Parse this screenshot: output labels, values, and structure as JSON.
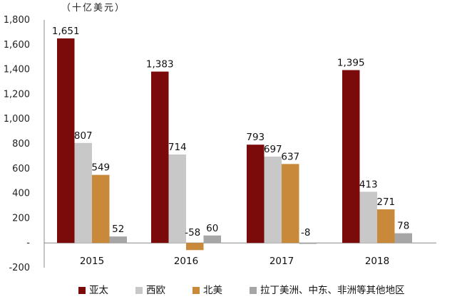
{
  "chart_data": {
    "type": "bar",
    "title": "",
    "xlabel": "",
    "ylabel": "（十亿美元）",
    "ylim": [
      -200,
      1800
    ],
    "yticks": [
      -200,
      0,
      200,
      400,
      600,
      800,
      1000,
      1200,
      1400,
      1600,
      1800
    ],
    "ytick_labels": [
      "-200",
      "-",
      "200",
      "400",
      "600",
      "800",
      "1,000",
      "1,200",
      "1,400",
      "1,600",
      "1,800"
    ],
    "categories": [
      "2015",
      "2016",
      "2017",
      "2018"
    ],
    "series": [
      {
        "name": "亚太",
        "color": "#7b0a0a",
        "values": [
          1651,
          1383,
          793,
          1395
        ],
        "labels": [
          "1,651",
          "1,383",
          "793",
          "1,395"
        ]
      },
      {
        "name": "西欧",
        "color": "#c8c8c8",
        "values": [
          807,
          714,
          697,
          413
        ],
        "labels": [
          "807",
          "714",
          "697",
          "413"
        ]
      },
      {
        "name": "北美",
        "color": "#c8893a",
        "values": [
          549,
          -58,
          637,
          271
        ],
        "labels": [
          "549",
          "-58",
          "637",
          "271"
        ]
      },
      {
        "name": "拉丁美洲、中东、非洲等其他地区",
        "color": "#a6a6a6",
        "values": [
          52,
          60,
          -8,
          78
        ],
        "labels": [
          "52",
          "60",
          "-8",
          "78"
        ]
      }
    ],
    "legend_position": "bottom",
    "grid": false
  }
}
